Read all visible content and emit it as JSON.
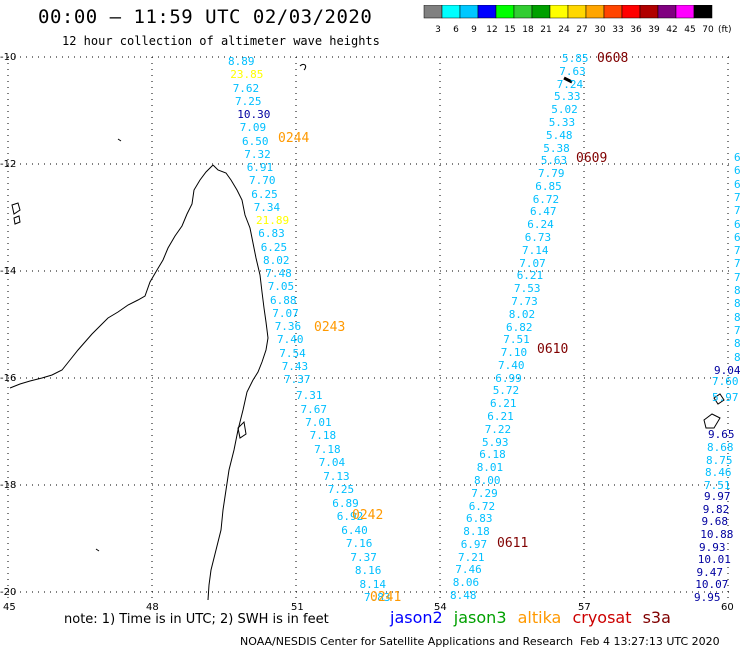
{
  "header": {
    "title": "00:00 – 11:59 UTC 02/03/2020",
    "subtitle": "12 hour collection of altimeter wave heights"
  },
  "colorbar": {
    "unit": "(ft)",
    "labels": [
      "3",
      "6",
      "9",
      "12",
      "15",
      "18",
      "21",
      "24",
      "27",
      "30",
      "33",
      "36",
      "39",
      "42",
      "45",
      "70"
    ],
    "colors": [
      "#808080",
      "#00ffff",
      "#00c8ff",
      "#0000ff",
      "#00ff00",
      "#32cd32",
      "#00a000",
      "#ffff00",
      "#ffd700",
      "#ffa500",
      "#ff4500",
      "#ff0000",
      "#b00000",
      "#800080",
      "#ff00ff",
      "#000000"
    ]
  },
  "axes": {
    "x_ticks": [
      "45",
      "48",
      "51",
      "54",
      "57",
      "60"
    ],
    "y_ticks": [
      "-10",
      "-12",
      "-14",
      "-16",
      "-18",
      "-20"
    ]
  },
  "tracks": [
    {
      "satellite": "altika",
      "time": "0244",
      "color": "#ff9900",
      "values": [
        "8.89",
        "23.85",
        "7.62",
        "7.25",
        "10.30",
        "7.09",
        "6.50",
        "7.32",
        "6.91",
        "7.70",
        "6.25",
        "7.34",
        "21.89",
        "6.83",
        "6.25",
        "8.02",
        "7.48",
        "7.05",
        "6.88",
        "7.07",
        "7.36",
        "7.40",
        "7.54",
        "7.43",
        "7.37"
      ],
      "colors": [
        "#00bfff",
        "#ffff00",
        "#00bfff",
        "#00bfff",
        "#0000a0",
        "#00bfff",
        "#00bfff",
        "#00bfff",
        "#00bfff",
        "#00bfff",
        "#00bfff",
        "#00bfff",
        "#ffff00",
        "#00bfff",
        "#00bfff",
        "#00bfff",
        "#00bfff",
        "#00bfff",
        "#00bfff",
        "#00bfff",
        "#00bfff",
        "#00bfff",
        "#00bfff",
        "#00bfff",
        "#00bfff"
      ]
    },
    {
      "satellite": "altika",
      "time": "0243",
      "color": "#ff9900",
      "values": [
        "7.31",
        "7.67",
        "7.01",
        "7.18",
        "7.18",
        "7.04",
        "7.13",
        "7.25",
        "6.89",
        "6.92",
        "6.40",
        "7.16",
        "7.37",
        "8.16",
        "8.14",
        "7.83"
      ]
    },
    {
      "satellite": "cryosat",
      "time": "0608",
      "color": "#800000",
      "values": [
        "5.85",
        "7.63",
        "7.24",
        "5.33",
        "5.02",
        "5.33",
        "5.48",
        "5.38",
        "5.63",
        "7.79",
        "6.85",
        "6.72",
        "6.47",
        "6.24",
        "6.73",
        "7.14",
        "7.07",
        "6.21",
        "7.53",
        "7.73",
        "8.02",
        "6.82",
        "7.51",
        "7.10",
        "7.40",
        "6.99",
        "5.72",
        "6.21",
        "6.21",
        "7.22",
        "5.93",
        "6.18",
        "8.01",
        "8.00",
        "7.29",
        "6.72",
        "6.83",
        "8.18",
        "6.97",
        "7.21",
        "7.46",
        "8.06",
        "8.48"
      ]
    },
    {
      "satellite": "jason2",
      "time": "",
      "color": "#0000a0",
      "values": [
        "7.60",
        "5.97",
        "9.65",
        "8.68",
        "8.75",
        "8.46",
        "7.51",
        "9.97",
        "9.82",
        "9.68",
        "10.88",
        "9.93",
        "10.01",
        "9.47",
        "10.07",
        "9.95"
      ]
    }
  ],
  "time_labels": {
    "t0244": "0244",
    "t0243": "0243",
    "t0242": "0242",
    "t0241": "0241",
    "t0608": "0608",
    "t0609": "0609",
    "t0610": "0610",
    "t0611": "0611"
  },
  "right_edge": [
    "6",
    "6",
    "6",
    "7",
    "7",
    "6",
    "6",
    "7",
    "7",
    "7",
    "8",
    "8",
    "8",
    "7",
    "8",
    "8",
    "9.04"
  ],
  "note": "note:  1) Time is in UTC;  2) SWH is in feet",
  "legend": {
    "jason2": "jason2",
    "jason3": "jason3",
    "altika": "altika",
    "cryosat": "cryosat",
    "s3a": "s3a",
    "colors": {
      "jason2": "#0000ff",
      "jason3": "#00a000",
      "altika": "#ff9900",
      "cryosat": "#cc0000",
      "s3a": "#800000"
    }
  },
  "credit": "NOAA/NESDIS Center for Satellite Applications and Research",
  "credit_time": "Feb  4 13:27:13 UTC 2020"
}
